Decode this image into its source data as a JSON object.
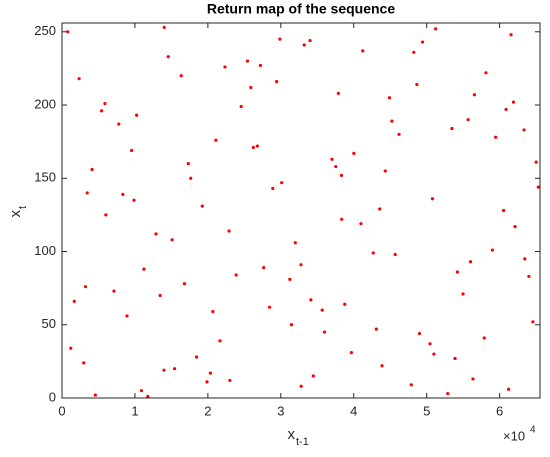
{
  "chart_data": {
    "type": "scatter",
    "title": "Return map of the sequence",
    "xlabel": "x",
    "xlabel_sub": "t-1",
    "ylabel": "x",
    "ylabel_sub": "t",
    "x_exponent_base": "×10",
    "x_exponent": "4",
    "color": "#ff0000",
    "xlim": [
      0,
      65536
    ],
    "ylim": [
      0,
      256
    ],
    "xticks": [
      0,
      {
        "value": 10000,
        "label": "1"
      },
      {
        "value": 20000,
        "label": "2"
      },
      {
        "value": 30000,
        "label": "3"
      },
      {
        "value": 40000,
        "label": "4"
      },
      {
        "value": 50000,
        "label": "5"
      },
      {
        "value": 60000,
        "label": "6"
      }
    ],
    "yticks": [
      0,
      50,
      100,
      150,
      200,
      250
    ],
    "x": [
      1203,
      5890,
      11234,
      17650,
      23011,
      29876,
      34120,
      40987,
      46213,
      52890,
      58123,
      63450,
      3456,
      8912,
      14567,
      20345,
      26789,
      31234,
      37890,
      43567,
      49012,
      55678,
      61234,
      65012,
      789,
      7123,
      12890,
      18456,
      24567,
      30123,
      35678,
      41234,
      47890,
      53456,
      59012,
      64567,
      2345,
      9876,
      15432,
      21098,
      27654,
      33210,
      38765,
      44321,
      50987,
      56543,
      62109,
      4567,
      10234,
      16789,
      22345,
      28901,
      34456,
      40012,
      45678,
      51234,
      57890,
      63345,
      6012,
      13456,
      19876,
      25432,
      31987,
      37543,
      43098,
      48654,
      54210,
      60876,
      2987,
      8345,
      14012,
      20678,
      26234,
      32789,
      38345,
      44901,
      50456,
      56012,
      61567,
      65300,
      1678,
      7789,
      13987,
      19234,
      25890,
      31456,
      37012,
      42678,
      48234,
      53890,
      59456,
      64012,
      4123,
      10890,
      16345,
      22901,
      28456,
      34012,
      39678,
      45234,
      50789,
      56345,
      61901,
      3210,
      9543,
      15098,
      21654,
      27210,
      32765,
      38321,
      43876,
      49432,
      54987,
      60543,
      5432,
      11765,
      17321,
      23876,
      29432,
      35987
    ],
    "values": [
      34,
      201,
      88,
      150,
      12,
      245,
      67,
      119,
      180,
      3,
      222,
      95,
      140,
      56,
      233,
      17,
      172,
      81,
      208,
      129,
      44,
      190,
      6,
      161,
      250,
      73,
      112,
      28,
      199,
      147,
      60,
      237,
      9,
      184,
      101,
      52,
      218,
      135,
      20,
      176,
      89,
      241,
      64,
      155,
      30,
      207,
      117,
      2,
      193,
      78,
      226,
      143,
      15,
      167,
      98,
      252,
      41,
      183,
      125,
      70,
      11,
      230,
      106,
      158,
      47,
      214,
      86,
      197,
      24,
      139,
      253,
      59,
      171,
      8,
      122,
      205,
      37,
      93,
      248,
      144,
      66,
      187,
      19,
      131,
      212,
      50,
      163,
      99,
      236,
      27,
      178,
      83,
      156,
      5,
      220,
      114,
      62,
      244,
      31,
      189,
      136,
      13,
      202,
      76,
      169,
      108,
      39,
      227,
      91,
      152,
      22,
      243,
      71,
      128,
      196,
      1,
      160,
      84,
      216,
      45
    ]
  }
}
